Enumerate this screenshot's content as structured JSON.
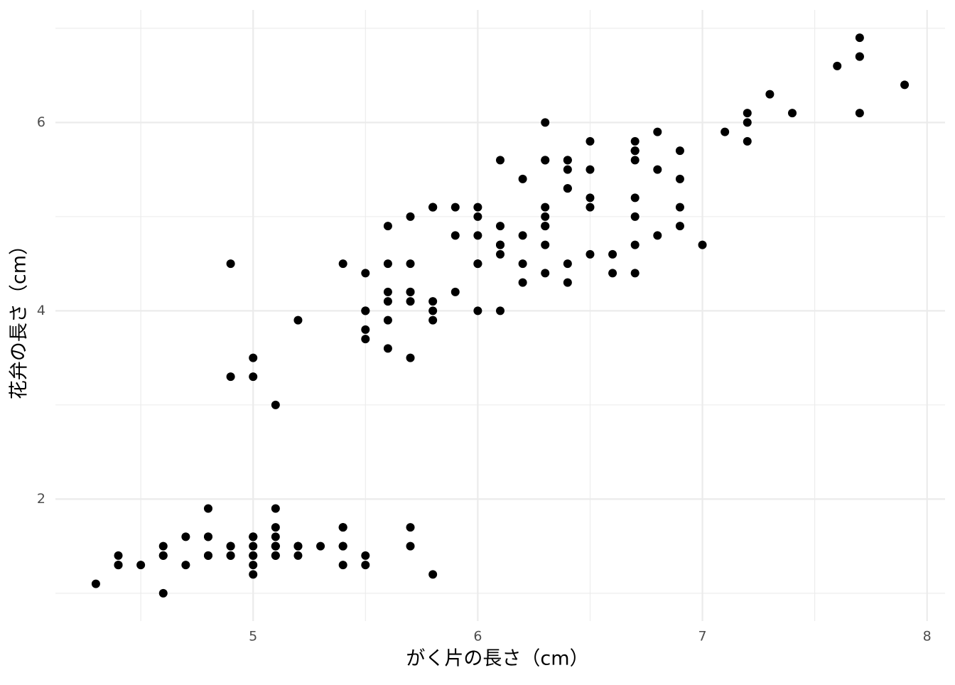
{
  "chart_data": {
    "type": "scatter",
    "x_label": "がく片の長さ（cm）",
    "y_label": "花弁の長さ（cm）",
    "color": "#000000",
    "grid": true,
    "xlim": [
      4.12,
      8.08
    ],
    "xticks": [
      5,
      6,
      7,
      8
    ],
    "xminor": [
      4.5,
      5.5,
      6.5,
      7.5
    ],
    "ylim": [
      0.705,
      7.195
    ],
    "yticks": [
      2,
      4,
      6
    ],
    "yminor": [
      1,
      3,
      5,
      7
    ],
    "x": [
      5.1,
      4.9,
      4.7,
      4.6,
      5.0,
      5.4,
      4.6,
      5.0,
      4.4,
      4.9,
      5.4,
      4.8,
      4.8,
      4.3,
      5.8,
      5.7,
      5.4,
      5.1,
      5.7,
      5.1,
      5.4,
      5.1,
      4.6,
      5.1,
      4.8,
      5.0,
      5.0,
      5.2,
      5.2,
      4.7,
      4.8,
      5.4,
      5.2,
      5.5,
      4.9,
      5.0,
      5.5,
      4.9,
      4.4,
      5.1,
      5.0,
      4.5,
      4.4,
      5.0,
      5.1,
      4.8,
      5.1,
      4.6,
      5.3,
      5.0,
      7.0,
      6.4,
      6.9,
      5.5,
      6.5,
      5.7,
      6.3,
      4.9,
      6.6,
      5.2,
      5.0,
      5.9,
      6.0,
      6.1,
      5.6,
      6.7,
      5.6,
      5.8,
      6.2,
      5.6,
      5.9,
      6.1,
      6.3,
      6.1,
      6.4,
      6.6,
      6.8,
      6.7,
      6.0,
      5.7,
      5.5,
      5.5,
      5.8,
      6.0,
      5.4,
      6.0,
      6.7,
      6.3,
      5.6,
      5.5,
      5.5,
      6.1,
      5.8,
      5.0,
      5.6,
      5.7,
      5.7,
      6.2,
      5.1,
      5.7,
      6.3,
      5.8,
      7.1,
      6.3,
      6.5,
      7.6,
      4.9,
      7.3,
      6.7,
      7.2,
      6.5,
      6.4,
      6.8,
      5.7,
      5.8,
      6.4,
      6.5,
      7.7,
      7.7,
      6.0,
      6.9,
      5.6,
      7.7,
      6.3,
      6.7,
      7.2,
      6.2,
      6.1,
      6.4,
      7.2,
      7.4,
      7.9,
      6.4,
      6.3,
      6.1,
      7.7,
      6.3,
      6.4,
      6.0,
      6.9,
      6.7,
      6.9,
      5.8,
      6.8,
      6.7,
      6.7,
      6.3,
      6.5,
      6.2,
      5.9
    ],
    "values": [
      1.4,
      1.4,
      1.3,
      1.5,
      1.4,
      1.7,
      1.4,
      1.5,
      1.4,
      1.5,
      1.5,
      1.6,
      1.4,
      1.1,
      1.2,
      1.5,
      1.3,
      1.4,
      1.7,
      1.5,
      1.7,
      1.5,
      1.0,
      1.7,
      1.9,
      1.6,
      1.6,
      1.5,
      1.4,
      1.6,
      1.6,
      1.5,
      1.5,
      1.4,
      1.5,
      1.2,
      1.3,
      1.4,
      1.3,
      1.5,
      1.3,
      1.3,
      1.3,
      1.6,
      1.9,
      1.4,
      1.6,
      1.4,
      1.5,
      1.4,
      4.7,
      4.5,
      4.9,
      4.0,
      4.6,
      4.5,
      4.7,
      3.3,
      4.6,
      3.9,
      3.5,
      4.2,
      4.0,
      4.7,
      3.6,
      4.4,
      4.5,
      4.1,
      4.5,
      3.9,
      4.8,
      4.0,
      4.9,
      4.7,
      4.3,
      4.4,
      4.8,
      5.0,
      4.5,
      3.5,
      3.8,
      3.7,
      3.9,
      5.1,
      4.5,
      4.5,
      4.7,
      4.4,
      4.1,
      4.0,
      4.4,
      4.6,
      4.0,
      3.3,
      4.2,
      4.2,
      4.2,
      4.3,
      3.0,
      4.1,
      6.0,
      5.1,
      5.9,
      5.6,
      5.8,
      6.6,
      4.5,
      6.3,
      5.8,
      6.1,
      5.1,
      5.3,
      5.5,
      5.0,
      5.1,
      5.3,
      5.5,
      6.7,
      6.9,
      5.0,
      5.7,
      4.9,
      6.7,
      4.9,
      5.7,
      6.0,
      4.8,
      4.9,
      5.6,
      5.8,
      6.1,
      6.4,
      5.6,
      5.1,
      5.6,
      6.1,
      5.6,
      5.5,
      4.8,
      5.4,
      5.6,
      5.1,
      5.1,
      5.9,
      5.7,
      5.2,
      5.0,
      5.2,
      5.4,
      5.1
    ]
  }
}
